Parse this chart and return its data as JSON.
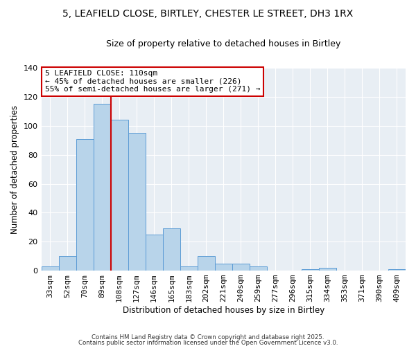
{
  "title": "5, LEAFIELD CLOSE, BIRTLEY, CHESTER LE STREET, DH3 1RX",
  "subtitle": "Size of property relative to detached houses in Birtley",
  "xlabel": "Distribution of detached houses by size in Birtley",
  "ylabel": "Number of detached properties",
  "bar_labels": [
    "33sqm",
    "52sqm",
    "70sqm",
    "89sqm",
    "108sqm",
    "127sqm",
    "146sqm",
    "165sqm",
    "183sqm",
    "202sqm",
    "221sqm",
    "240sqm",
    "259sqm",
    "277sqm",
    "296sqm",
    "315sqm",
    "334sqm",
    "353sqm",
    "371sqm",
    "390sqm",
    "409sqm"
  ],
  "bar_values": [
    3,
    10,
    91,
    115,
    104,
    95,
    25,
    29,
    3,
    10,
    5,
    5,
    3,
    0,
    0,
    1,
    2,
    0,
    0,
    0,
    1
  ],
  "bar_color": "#b8d4ea",
  "bar_edgecolor": "#5b9bd5",
  "ylim": [
    0,
    140
  ],
  "yticks": [
    0,
    20,
    40,
    60,
    80,
    100,
    120,
    140
  ],
  "vline_color": "#cc0000",
  "vline_x_index": 4,
  "annotation_title": "5 LEAFIELD CLOSE: 110sqm",
  "annotation_line1": "← 45% of detached houses are smaller (226)",
  "annotation_line2": "55% of semi-detached houses are larger (271) →",
  "annotation_box_edgecolor": "#cc0000",
  "plot_bg_color": "#e8eef4",
  "footer1": "Contains HM Land Registry data © Crown copyright and database right 2025.",
  "footer2": "Contains public sector information licensed under the Open Government Licence v3.0.",
  "title_fontsize": 10,
  "subtitle_fontsize": 9,
  "axis_label_fontsize": 8.5,
  "tick_fontsize": 8,
  "annot_fontsize": 8
}
